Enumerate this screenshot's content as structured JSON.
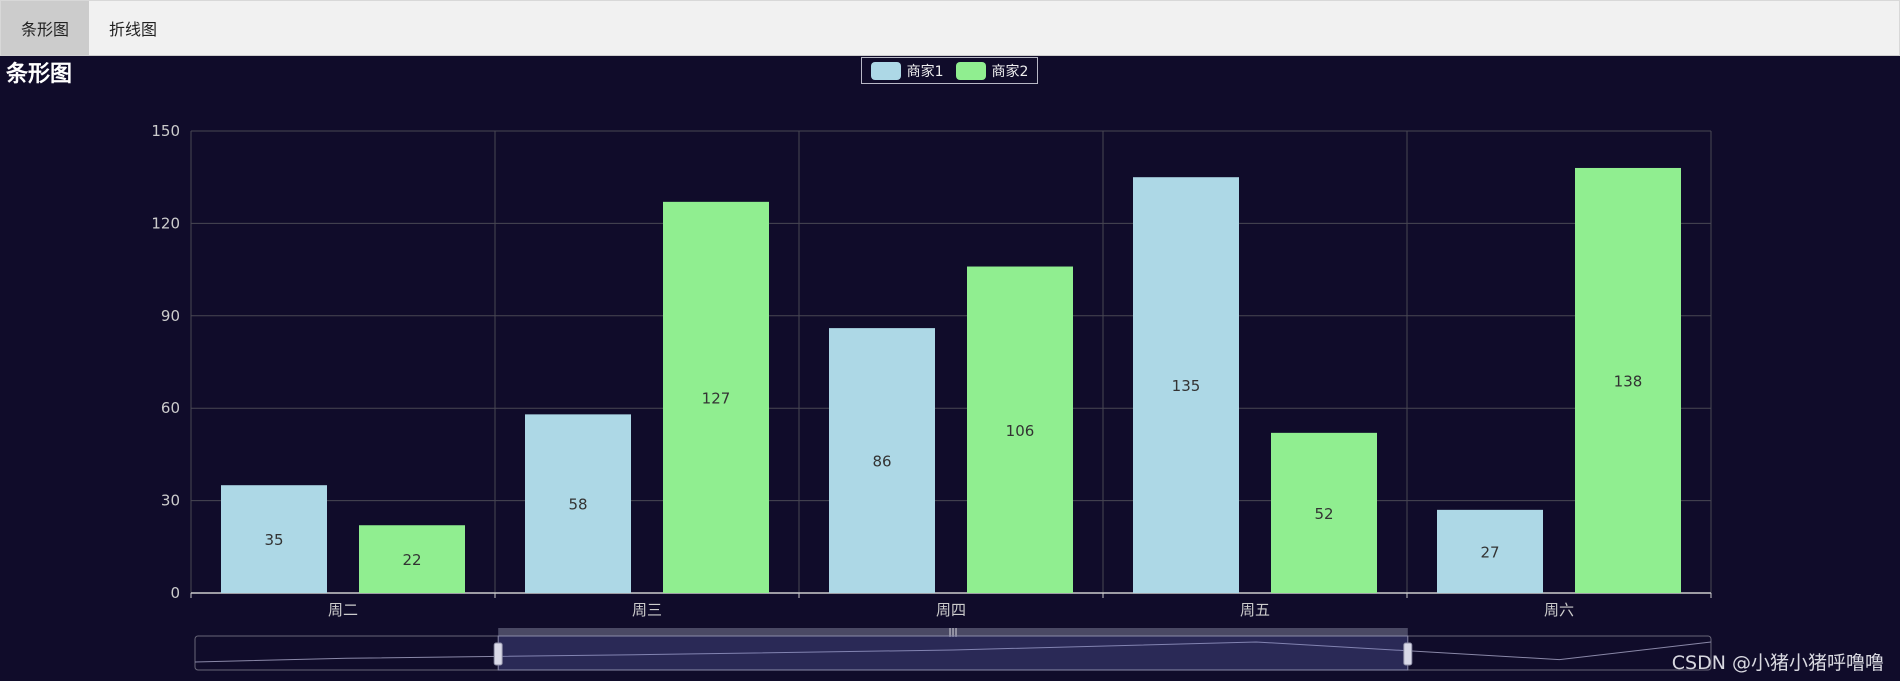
{
  "tabs": [
    {
      "label": "条形图",
      "active": true
    },
    {
      "label": "折线图",
      "active": false
    }
  ],
  "chart_title": "条形图",
  "watermark": "CSDN @小猪小猪呼噜噜",
  "colors": {
    "background": "#100c2a",
    "series1": "#add8e6",
    "series2": "#90ee90",
    "grid": "#484753",
    "axis_text": "#cccccc"
  },
  "chart_data": {
    "type": "bar",
    "categories": [
      "周二",
      "周三",
      "周四",
      "周五",
      "周六"
    ],
    "series": [
      {
        "name": "商家1",
        "values": [
          35,
          58,
          86,
          135,
          27
        ]
      },
      {
        "name": "商家2",
        "values": [
          22,
          127,
          106,
          52,
          138
        ]
      }
    ],
    "ylim": [
      0,
      150
    ],
    "yticks": [
      0,
      30,
      60,
      90,
      120,
      150
    ],
    "legend_position": "top-center",
    "grid": true,
    "data_labels": true,
    "data_zoom": {
      "enabled": true,
      "start_fraction": 0.2,
      "end_fraction": 0.8
    },
    "zoom_overview_values": [
      35,
      58,
      86,
      135,
      27
    ]
  }
}
